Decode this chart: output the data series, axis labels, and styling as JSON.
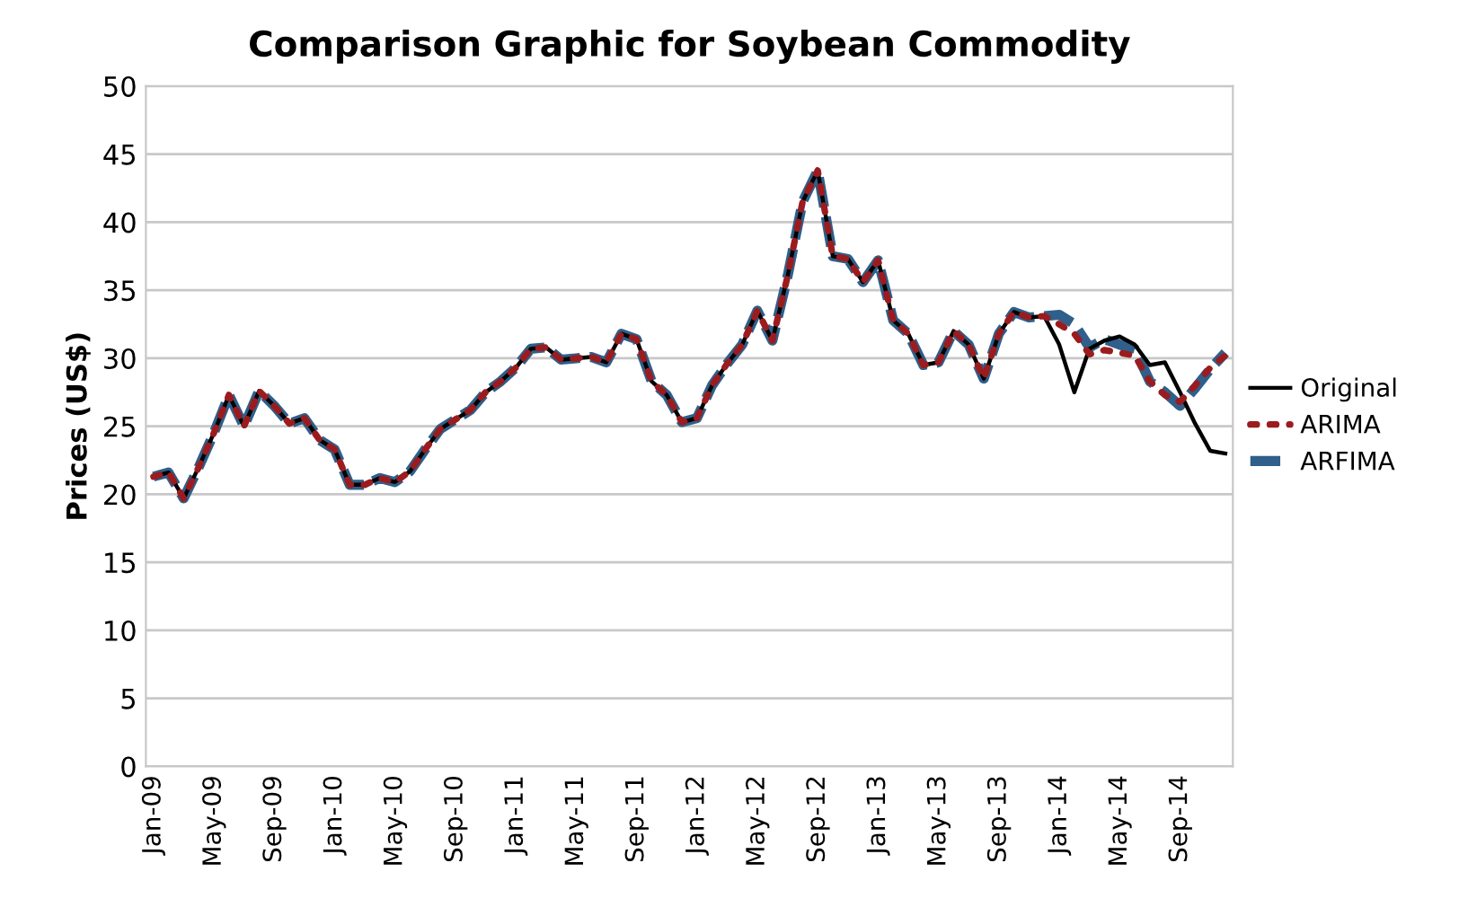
{
  "chart_data": {
    "type": "line",
    "title": "Comparison Graphic for Soybean Commodity",
    "ylabel": "Prices (US$)",
    "categories": [
      "Jan-09",
      null,
      null,
      null,
      "May-09",
      null,
      null,
      null,
      "Sep-09",
      null,
      null,
      null,
      "Jan-10",
      null,
      null,
      null,
      "May-10",
      null,
      null,
      null,
      "Sep-10",
      null,
      null,
      null,
      "Jan-11",
      null,
      null,
      null,
      "May-11",
      null,
      null,
      null,
      "Sep-11",
      null,
      null,
      null,
      "Jan-12",
      null,
      null,
      null,
      "May-12",
      null,
      null,
      null,
      "Sep-12",
      null,
      null,
      null,
      "Jan-13",
      null,
      null,
      null,
      "May-13",
      null,
      null,
      null,
      "Sep-13",
      null,
      null,
      null,
      "Jan-14",
      null,
      null,
      null,
      "May-14",
      null,
      null,
      null,
      "Sep-14",
      null,
      null,
      null
    ],
    "series": [
      {
        "name": "ARFIMA",
        "color": "#2f5f8a",
        "line_style": "dashed",
        "values": [
          21.3,
          21.6,
          19.7,
          22,
          24.5,
          27.3,
          25,
          27.6,
          26.5,
          25.2,
          25.6,
          24,
          23.3,
          20.7,
          20.7,
          21.2,
          20.9,
          21.7,
          23.3,
          24.8,
          25.5,
          26.2,
          27.5,
          28.3,
          29.3,
          30.7,
          30.8,
          29.9,
          30,
          30.1,
          29.7,
          31.8,
          31.4,
          28.3,
          27.3,
          25.3,
          25.6,
          28,
          29.6,
          31,
          33.5,
          31.3,
          36,
          41.5,
          43.8,
          37.5,
          37.3,
          35.6,
          37.2,
          32.8,
          31.8,
          29.5,
          29.7,
          32,
          31,
          28.5,
          31.8,
          33.4,
          33,
          33.1,
          33.2,
          32.5,
          30.8,
          31.4,
          31,
          30.7,
          28.3,
          27.5,
          26.5,
          27.8,
          29.2,
          30.4
        ]
      },
      {
        "name": "Original",
        "color": "#000000",
        "line_style": "solid",
        "values": [
          21.3,
          21.6,
          19.7,
          22,
          24.5,
          27.3,
          25,
          27.6,
          26.5,
          25.2,
          25.6,
          24,
          23.3,
          20.7,
          20.7,
          21.2,
          20.9,
          21.7,
          23.3,
          24.8,
          25.5,
          26.2,
          27.5,
          28.3,
          29.3,
          30.7,
          30.8,
          29.9,
          30,
          30.1,
          29.7,
          31.8,
          31.4,
          28.3,
          27.3,
          25.3,
          25.6,
          28,
          29.6,
          31,
          33.5,
          31.3,
          36,
          41.5,
          43.8,
          37.5,
          37.3,
          35.6,
          37.2,
          32.8,
          31.8,
          29.5,
          29.7,
          32,
          31,
          28.5,
          31.8,
          33.4,
          33,
          33.1,
          31,
          27.5,
          30.7,
          31.3,
          31.6,
          31,
          29.5,
          29.7,
          27.5,
          25.2,
          23.2,
          23
        ]
      },
      {
        "name": "ARIMA",
        "color": "#9b1c1f",
        "line_style": "dotted",
        "values": [
          21.3,
          21.6,
          19.7,
          22,
          24.5,
          27.3,
          25,
          27.6,
          26.5,
          25.2,
          25.6,
          24,
          23.3,
          20.7,
          20.7,
          21.2,
          20.9,
          21.7,
          23.3,
          24.8,
          25.5,
          26.2,
          27.5,
          28.3,
          29.3,
          30.7,
          30.8,
          29.9,
          30,
          30.1,
          29.7,
          31.8,
          31.4,
          28.3,
          27.3,
          25.3,
          25.6,
          28,
          29.6,
          31,
          33.5,
          31.3,
          36,
          41.5,
          43.8,
          37.5,
          37.3,
          35.6,
          37.2,
          32.8,
          31.8,
          29.5,
          29.7,
          32,
          31,
          28.5,
          31.8,
          33.4,
          33,
          33.1,
          32.5,
          31.8,
          30.3,
          30.6,
          30.4,
          30.2,
          28.3,
          27.3,
          26.8,
          28,
          29.3,
          30.2
        ]
      }
    ],
    "ylim": [
      0,
      50
    ],
    "yticks": [
      0,
      5,
      10,
      15,
      20,
      25,
      30,
      35,
      40,
      45,
      50
    ],
    "grid": "y",
    "legend": "right"
  }
}
